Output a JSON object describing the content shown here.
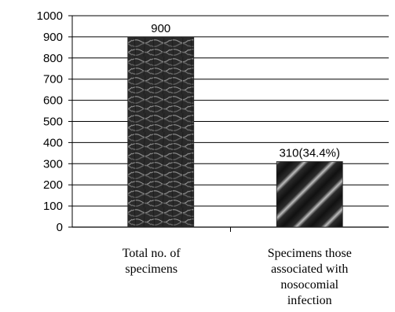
{
  "chart_data": {
    "type": "bar",
    "categories": [
      [
        "Total no. of",
        "specimens"
      ],
      [
        "Specimens those",
        "associated with",
        "nosocomial",
        "infection"
      ]
    ],
    "values": [
      900,
      310
    ],
    "data_labels": [
      "900",
      "310(34.4%)"
    ],
    "ylim": [
      0,
      1000
    ],
    "yticks": [
      0,
      100,
      200,
      300,
      400,
      500,
      600,
      700,
      800,
      900,
      1000
    ],
    "grid": "horizontal",
    "title": "",
    "xlabel": "",
    "ylabel": ""
  }
}
